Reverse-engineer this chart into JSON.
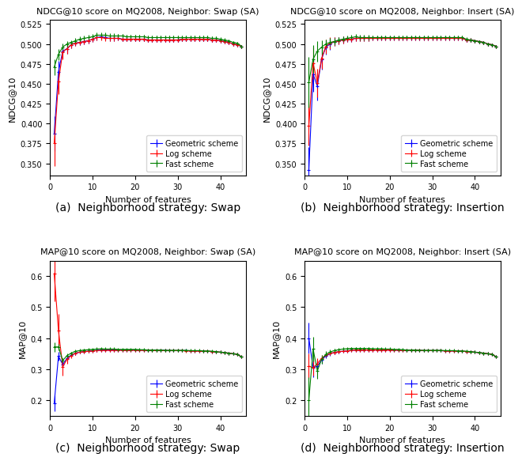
{
  "titles": [
    "NDCG@10 score on MQ2008, Neighbor: Swap (SA)",
    "NDCG@10 score on MQ2008, Neighbor: Insert (SA)",
    "MAP@10 score on MQ2008, Neighbor: Swap (SA)",
    "MAP@10 score on MQ2008, Neighbor: Insert (SA)"
  ],
  "xlabels": [
    "Number of features",
    "Number of features",
    "Number of features",
    "Number of features"
  ],
  "ylabels": [
    "NDCG@10",
    "NDCG@10",
    "MAP@10",
    "MAP@10"
  ],
  "captions": [
    "(a)  Neighborhood strategy: Swap",
    "(b)  Neighborhood strategy: Insertion",
    "(c)  Neighborhood strategy: Swap",
    "(d)  Neighborhood strategy: Insertion"
  ],
  "legend_labels": [
    "Geometric scheme",
    "Log scheme",
    "Fast scheme"
  ],
  "colors": [
    "blue",
    "red",
    "green"
  ],
  "x_values": [
    1,
    2,
    3,
    4,
    5,
    6,
    7,
    8,
    9,
    10,
    11,
    12,
    13,
    14,
    15,
    16,
    17,
    18,
    19,
    20,
    21,
    22,
    23,
    24,
    25,
    26,
    27,
    28,
    29,
    30,
    31,
    32,
    33,
    34,
    35,
    36,
    37,
    38,
    39,
    40,
    41,
    42,
    43,
    44,
    45
  ],
  "ndcg_swap": {
    "geo_y": [
      0.387,
      0.465,
      0.491,
      0.494,
      0.499,
      0.501,
      0.502,
      0.503,
      0.504,
      0.506,
      0.508,
      0.509,
      0.508,
      0.507,
      0.507,
      0.507,
      0.506,
      0.506,
      0.506,
      0.506,
      0.506,
      0.506,
      0.505,
      0.505,
      0.505,
      0.505,
      0.505,
      0.505,
      0.505,
      0.505,
      0.506,
      0.506,
      0.506,
      0.506,
      0.506,
      0.506,
      0.506,
      0.505,
      0.505,
      0.504,
      0.503,
      0.502,
      0.5,
      0.499,
      0.497
    ],
    "geo_err": [
      0.022,
      0.014,
      0.009,
      0.006,
      0.004,
      0.003,
      0.003,
      0.003,
      0.003,
      0.003,
      0.003,
      0.003,
      0.003,
      0.003,
      0.003,
      0.002,
      0.002,
      0.002,
      0.002,
      0.002,
      0.002,
      0.002,
      0.002,
      0.002,
      0.002,
      0.002,
      0.002,
      0.002,
      0.002,
      0.002,
      0.002,
      0.002,
      0.002,
      0.002,
      0.002,
      0.002,
      0.002,
      0.002,
      0.002,
      0.002,
      0.002,
      0.002,
      0.002,
      0.002,
      0.002
    ],
    "log_y": [
      0.375,
      0.453,
      0.49,
      0.494,
      0.499,
      0.501,
      0.502,
      0.503,
      0.504,
      0.506,
      0.508,
      0.508,
      0.507,
      0.507,
      0.507,
      0.507,
      0.506,
      0.506,
      0.506,
      0.506,
      0.506,
      0.506,
      0.505,
      0.505,
      0.505,
      0.505,
      0.505,
      0.505,
      0.505,
      0.505,
      0.506,
      0.506,
      0.506,
      0.506,
      0.506,
      0.506,
      0.506,
      0.505,
      0.505,
      0.504,
      0.503,
      0.502,
      0.5,
      0.499,
      0.497
    ],
    "log_err": [
      0.028,
      0.016,
      0.009,
      0.006,
      0.004,
      0.003,
      0.003,
      0.003,
      0.003,
      0.003,
      0.003,
      0.003,
      0.003,
      0.003,
      0.003,
      0.002,
      0.002,
      0.002,
      0.002,
      0.002,
      0.002,
      0.002,
      0.002,
      0.002,
      0.002,
      0.002,
      0.002,
      0.002,
      0.002,
      0.002,
      0.002,
      0.002,
      0.002,
      0.002,
      0.002,
      0.002,
      0.002,
      0.002,
      0.002,
      0.002,
      0.002,
      0.002,
      0.002,
      0.002,
      0.002
    ],
    "fast_y": [
      0.471,
      0.487,
      0.496,
      0.5,
      0.502,
      0.504,
      0.506,
      0.507,
      0.508,
      0.509,
      0.511,
      0.511,
      0.511,
      0.51,
      0.51,
      0.51,
      0.51,
      0.509,
      0.509,
      0.509,
      0.509,
      0.509,
      0.508,
      0.508,
      0.508,
      0.508,
      0.508,
      0.508,
      0.508,
      0.508,
      0.508,
      0.508,
      0.508,
      0.508,
      0.508,
      0.508,
      0.508,
      0.507,
      0.507,
      0.506,
      0.505,
      0.504,
      0.502,
      0.501,
      0.497
    ],
    "fast_err": [
      0.01,
      0.007,
      0.005,
      0.004,
      0.003,
      0.003,
      0.003,
      0.003,
      0.003,
      0.003,
      0.003,
      0.003,
      0.003,
      0.003,
      0.003,
      0.002,
      0.002,
      0.002,
      0.002,
      0.002,
      0.002,
      0.002,
      0.002,
      0.002,
      0.002,
      0.002,
      0.002,
      0.002,
      0.002,
      0.002,
      0.002,
      0.002,
      0.002,
      0.002,
      0.002,
      0.002,
      0.002,
      0.002,
      0.002,
      0.002,
      0.002,
      0.002,
      0.002,
      0.002,
      0.002
    ]
  },
  "ndcg_insert": {
    "geo_y": [
      0.342,
      0.462,
      0.447,
      0.481,
      0.496,
      0.5,
      0.503,
      0.504,
      0.505,
      0.506,
      0.506,
      0.507,
      0.507,
      0.507,
      0.507,
      0.507,
      0.507,
      0.507,
      0.507,
      0.507,
      0.507,
      0.507,
      0.507,
      0.507,
      0.507,
      0.507,
      0.507,
      0.507,
      0.507,
      0.507,
      0.507,
      0.507,
      0.507,
      0.507,
      0.507,
      0.507,
      0.507,
      0.505,
      0.505,
      0.504,
      0.503,
      0.502,
      0.5,
      0.499,
      0.497
    ],
    "geo_err": [
      0.028,
      0.022,
      0.018,
      0.013,
      0.009,
      0.007,
      0.005,
      0.004,
      0.004,
      0.003,
      0.003,
      0.003,
      0.003,
      0.003,
      0.003,
      0.002,
      0.002,
      0.002,
      0.002,
      0.002,
      0.002,
      0.002,
      0.002,
      0.002,
      0.002,
      0.002,
      0.002,
      0.002,
      0.002,
      0.002,
      0.002,
      0.002,
      0.002,
      0.002,
      0.002,
      0.002,
      0.002,
      0.002,
      0.002,
      0.002,
      0.002,
      0.002,
      0.002,
      0.002,
      0.002
    ],
    "log_y": [
      0.397,
      0.476,
      0.451,
      0.482,
      0.497,
      0.501,
      0.503,
      0.504,
      0.505,
      0.506,
      0.506,
      0.507,
      0.507,
      0.507,
      0.507,
      0.507,
      0.507,
      0.507,
      0.507,
      0.507,
      0.507,
      0.507,
      0.507,
      0.507,
      0.507,
      0.507,
      0.507,
      0.507,
      0.507,
      0.507,
      0.507,
      0.507,
      0.507,
      0.507,
      0.507,
      0.507,
      0.507,
      0.505,
      0.505,
      0.504,
      0.503,
      0.502,
      0.5,
      0.499,
      0.497
    ],
    "log_err": [
      0.025,
      0.02,
      0.018,
      0.013,
      0.009,
      0.007,
      0.005,
      0.004,
      0.004,
      0.003,
      0.003,
      0.003,
      0.003,
      0.003,
      0.003,
      0.002,
      0.002,
      0.002,
      0.002,
      0.002,
      0.002,
      0.002,
      0.002,
      0.002,
      0.002,
      0.002,
      0.002,
      0.002,
      0.002,
      0.002,
      0.002,
      0.002,
      0.002,
      0.002,
      0.002,
      0.002,
      0.002,
      0.002,
      0.002,
      0.002,
      0.002,
      0.002,
      0.002,
      0.002,
      0.002
    ],
    "fast_y": [
      0.452,
      0.481,
      0.491,
      0.496,
      0.5,
      0.502,
      0.503,
      0.505,
      0.506,
      0.507,
      0.508,
      0.509,
      0.508,
      0.508,
      0.508,
      0.508,
      0.508,
      0.508,
      0.508,
      0.508,
      0.508,
      0.508,
      0.508,
      0.508,
      0.508,
      0.508,
      0.508,
      0.508,
      0.508,
      0.508,
      0.508,
      0.508,
      0.508,
      0.508,
      0.508,
      0.508,
      0.508,
      0.506,
      0.505,
      0.504,
      0.503,
      0.502,
      0.5,
      0.499,
      0.497
    ],
    "fast_err": [
      0.032,
      0.018,
      0.013,
      0.009,
      0.006,
      0.005,
      0.004,
      0.003,
      0.003,
      0.003,
      0.003,
      0.003,
      0.003,
      0.003,
      0.003,
      0.002,
      0.002,
      0.002,
      0.002,
      0.002,
      0.002,
      0.002,
      0.002,
      0.002,
      0.002,
      0.002,
      0.002,
      0.002,
      0.002,
      0.002,
      0.002,
      0.002,
      0.002,
      0.002,
      0.002,
      0.002,
      0.002,
      0.002,
      0.002,
      0.002,
      0.002,
      0.002,
      0.002,
      0.002,
      0.002
    ]
  },
  "map_swap": {
    "geo_y": [
      0.19,
      0.342,
      0.315,
      0.335,
      0.345,
      0.352,
      0.355,
      0.357,
      0.358,
      0.359,
      0.361,
      0.362,
      0.362,
      0.362,
      0.362,
      0.362,
      0.362,
      0.362,
      0.362,
      0.362,
      0.362,
      0.361,
      0.361,
      0.361,
      0.361,
      0.361,
      0.361,
      0.36,
      0.36,
      0.36,
      0.36,
      0.36,
      0.359,
      0.359,
      0.359,
      0.358,
      0.358,
      0.357,
      0.356,
      0.355,
      0.353,
      0.352,
      0.35,
      0.348,
      0.34
    ],
    "geo_err": [
      0.025,
      0.015,
      0.01,
      0.007,
      0.005,
      0.004,
      0.004,
      0.003,
      0.003,
      0.003,
      0.003,
      0.003,
      0.003,
      0.003,
      0.003,
      0.002,
      0.002,
      0.002,
      0.002,
      0.002,
      0.002,
      0.002,
      0.002,
      0.002,
      0.002,
      0.002,
      0.002,
      0.002,
      0.002,
      0.002,
      0.002,
      0.002,
      0.002,
      0.002,
      0.002,
      0.002,
      0.002,
      0.002,
      0.002,
      0.002,
      0.002,
      0.002,
      0.002,
      0.002,
      0.002
    ],
    "log_y": [
      0.608,
      0.424,
      0.308,
      0.332,
      0.344,
      0.352,
      0.355,
      0.357,
      0.358,
      0.359,
      0.36,
      0.361,
      0.361,
      0.361,
      0.361,
      0.361,
      0.361,
      0.361,
      0.361,
      0.361,
      0.361,
      0.361,
      0.361,
      0.36,
      0.36,
      0.36,
      0.36,
      0.36,
      0.36,
      0.36,
      0.36,
      0.359,
      0.359,
      0.359,
      0.358,
      0.358,
      0.358,
      0.357,
      0.356,
      0.355,
      0.353,
      0.352,
      0.35,
      0.348,
      0.34
    ],
    "log_err": [
      0.09,
      0.055,
      0.028,
      0.014,
      0.009,
      0.007,
      0.005,
      0.004,
      0.004,
      0.003,
      0.003,
      0.003,
      0.003,
      0.003,
      0.003,
      0.002,
      0.002,
      0.002,
      0.002,
      0.002,
      0.002,
      0.002,
      0.002,
      0.002,
      0.002,
      0.002,
      0.002,
      0.002,
      0.002,
      0.002,
      0.002,
      0.002,
      0.002,
      0.002,
      0.002,
      0.002,
      0.002,
      0.002,
      0.002,
      0.002,
      0.002,
      0.002,
      0.002,
      0.002,
      0.002
    ],
    "fast_y": [
      0.372,
      0.372,
      0.328,
      0.344,
      0.352,
      0.358,
      0.36,
      0.362,
      0.363,
      0.364,
      0.365,
      0.366,
      0.365,
      0.365,
      0.365,
      0.364,
      0.364,
      0.364,
      0.364,
      0.364,
      0.363,
      0.363,
      0.362,
      0.362,
      0.362,
      0.362,
      0.361,
      0.361,
      0.361,
      0.361,
      0.361,
      0.361,
      0.36,
      0.36,
      0.36,
      0.359,
      0.359,
      0.358,
      0.357,
      0.355,
      0.354,
      0.352,
      0.35,
      0.348,
      0.34
    ],
    "fast_err": [
      0.015,
      0.01,
      0.008,
      0.006,
      0.004,
      0.004,
      0.003,
      0.003,
      0.003,
      0.003,
      0.003,
      0.003,
      0.003,
      0.003,
      0.003,
      0.002,
      0.002,
      0.002,
      0.002,
      0.002,
      0.002,
      0.002,
      0.002,
      0.002,
      0.002,
      0.002,
      0.002,
      0.002,
      0.002,
      0.002,
      0.002,
      0.002,
      0.002,
      0.002,
      0.002,
      0.002,
      0.002,
      0.002,
      0.002,
      0.002,
      0.002,
      0.002,
      0.002,
      0.002,
      0.002
    ]
  },
  "map_insert": {
    "geo_y": [
      0.4,
      0.305,
      0.31,
      0.33,
      0.343,
      0.35,
      0.354,
      0.356,
      0.358,
      0.359,
      0.361,
      0.362,
      0.362,
      0.362,
      0.362,
      0.362,
      0.362,
      0.362,
      0.362,
      0.362,
      0.362,
      0.361,
      0.361,
      0.361,
      0.361,
      0.361,
      0.361,
      0.36,
      0.36,
      0.36,
      0.36,
      0.36,
      0.359,
      0.359,
      0.359,
      0.358,
      0.358,
      0.357,
      0.356,
      0.355,
      0.353,
      0.352,
      0.35,
      0.348,
      0.34
    ],
    "geo_err": [
      0.05,
      0.03,
      0.02,
      0.012,
      0.008,
      0.006,
      0.005,
      0.004,
      0.003,
      0.003,
      0.003,
      0.003,
      0.003,
      0.003,
      0.003,
      0.002,
      0.002,
      0.002,
      0.002,
      0.002,
      0.002,
      0.002,
      0.002,
      0.002,
      0.002,
      0.002,
      0.002,
      0.002,
      0.002,
      0.002,
      0.002,
      0.002,
      0.002,
      0.002,
      0.002,
      0.002,
      0.002,
      0.002,
      0.002,
      0.002,
      0.002,
      0.002,
      0.002,
      0.002,
      0.002
    ],
    "log_y": [
      0.31,
      0.305,
      0.318,
      0.335,
      0.345,
      0.351,
      0.354,
      0.357,
      0.358,
      0.359,
      0.361,
      0.362,
      0.362,
      0.362,
      0.362,
      0.362,
      0.362,
      0.362,
      0.362,
      0.362,
      0.362,
      0.361,
      0.361,
      0.361,
      0.361,
      0.361,
      0.361,
      0.36,
      0.36,
      0.36,
      0.36,
      0.36,
      0.359,
      0.359,
      0.359,
      0.358,
      0.358,
      0.357,
      0.356,
      0.355,
      0.353,
      0.352,
      0.35,
      0.348,
      0.34
    ],
    "log_err": [
      0.04,
      0.025,
      0.018,
      0.012,
      0.008,
      0.006,
      0.005,
      0.004,
      0.003,
      0.003,
      0.003,
      0.003,
      0.003,
      0.003,
      0.003,
      0.002,
      0.002,
      0.002,
      0.002,
      0.002,
      0.002,
      0.002,
      0.002,
      0.002,
      0.002,
      0.002,
      0.002,
      0.002,
      0.002,
      0.002,
      0.002,
      0.002,
      0.002,
      0.002,
      0.002,
      0.002,
      0.002,
      0.002,
      0.002,
      0.002,
      0.002,
      0.002,
      0.002,
      0.002,
      0.002
    ],
    "fast_y": [
      0.2,
      0.365,
      0.295,
      0.332,
      0.348,
      0.356,
      0.36,
      0.363,
      0.365,
      0.366,
      0.367,
      0.367,
      0.367,
      0.367,
      0.367,
      0.366,
      0.366,
      0.366,
      0.365,
      0.365,
      0.364,
      0.364,
      0.363,
      0.362,
      0.362,
      0.362,
      0.361,
      0.361,
      0.361,
      0.361,
      0.361,
      0.361,
      0.36,
      0.36,
      0.36,
      0.359,
      0.359,
      0.358,
      0.357,
      0.355,
      0.354,
      0.352,
      0.35,
      0.348,
      0.34
    ],
    "fast_err": [
      0.075,
      0.04,
      0.025,
      0.015,
      0.01,
      0.007,
      0.005,
      0.004,
      0.003,
      0.003,
      0.003,
      0.003,
      0.003,
      0.003,
      0.003,
      0.002,
      0.002,
      0.002,
      0.002,
      0.002,
      0.002,
      0.002,
      0.002,
      0.002,
      0.002,
      0.002,
      0.002,
      0.002,
      0.002,
      0.002,
      0.002,
      0.002,
      0.002,
      0.002,
      0.002,
      0.002,
      0.002,
      0.002,
      0.002,
      0.002,
      0.002,
      0.002,
      0.002,
      0.002,
      0.002
    ]
  },
  "ndcg_ylim": [
    0.335,
    0.53
  ],
  "map_ylim": [
    0.15,
    0.65
  ],
  "xlim": [
    0,
    46
  ],
  "xticks": [
    0,
    10,
    20,
    30,
    40
  ],
  "ndcg_yticks": [
    0.35,
    0.375,
    0.4,
    0.425,
    0.45,
    0.475,
    0.5,
    0.525
  ],
  "map_yticks": [
    0.2,
    0.3,
    0.4,
    0.5,
    0.6
  ],
  "title_fontsize": 8,
  "label_fontsize": 8,
  "tick_fontsize": 7,
  "legend_fontsize": 7,
  "caption_fontsize": 10
}
